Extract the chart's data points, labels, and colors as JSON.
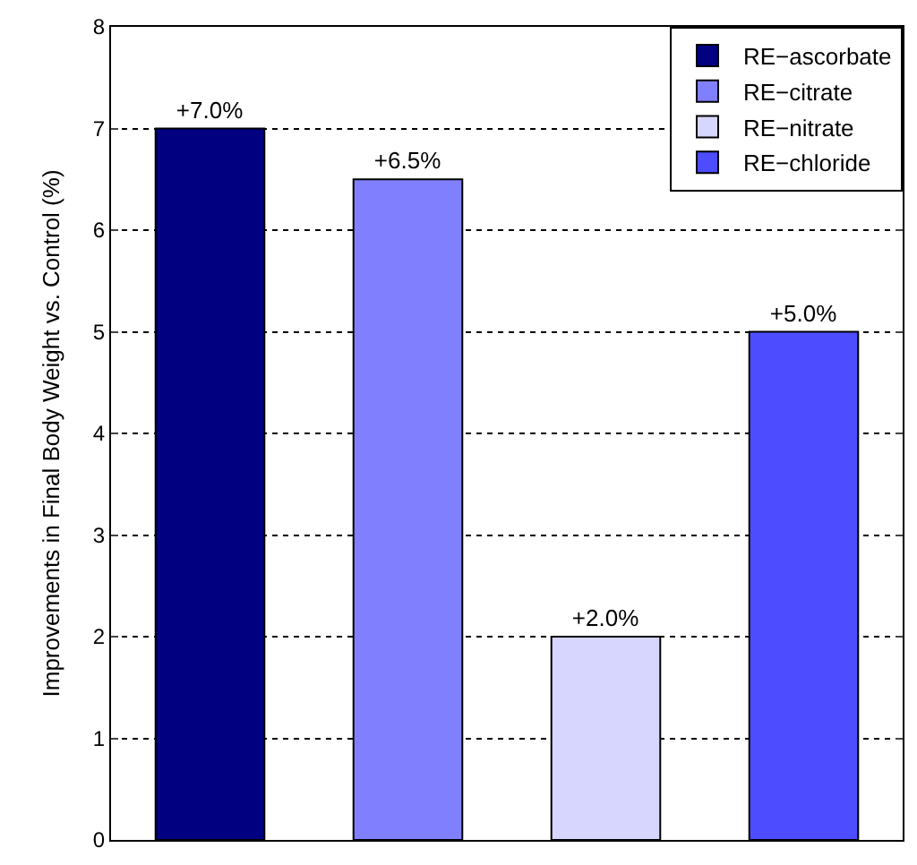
{
  "chart_data": {
    "type": "bar",
    "ylabel": "Improvements in Final Body Weight vs. Control (%)",
    "categories": [
      null,
      null,
      null,
      null
    ],
    "series": [
      {
        "name": "RE−ascorbate",
        "color": "#000080",
        "values": [
          7.0,
          null,
          null,
          null
        ],
        "value_labels": [
          "+7.0%",
          null,
          null,
          null
        ]
      },
      {
        "name": "RE−citrate",
        "color": "#8080ff",
        "values": [
          null,
          6.5,
          null,
          null
        ],
        "value_labels": [
          null,
          "+6.5%",
          null,
          null
        ]
      },
      {
        "name": "RE−nitrate",
        "color": "#d6d6ff",
        "values": [
          null,
          null,
          2.0,
          null
        ],
        "value_labels": [
          null,
          null,
          "+2.0%",
          null
        ]
      },
      {
        "name": "RE−chloride",
        "color": "#4d4dff",
        "values": [
          null,
          null,
          null,
          5.0
        ],
        "value_labels": [
          null,
          null,
          null,
          "+5.0%"
        ]
      }
    ],
    "ylim": [
      0,
      8
    ],
    "yticks": [
      0,
      1,
      2,
      3,
      4,
      5,
      6,
      7,
      8
    ],
    "grid": "y",
    "legend": "top right",
    "tick_labels": "y"
  }
}
